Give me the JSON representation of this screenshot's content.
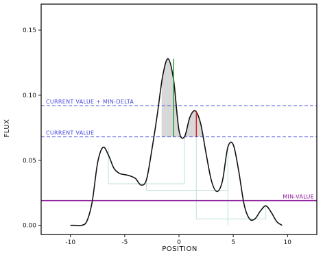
{
  "chart_data": {
    "type": "line",
    "xlabel": "POSITION",
    "ylabel": "FLUX",
    "xlim": [
      -12.7,
      12.7
    ],
    "ylim": [
      -0.007,
      0.17
    ],
    "xticks": [
      -10,
      -5,
      0,
      5,
      10
    ],
    "yticks": [
      0.0,
      0.05,
      0.1,
      0.15
    ],
    "xtick_labels": [
      "-10",
      "-5",
      "0",
      "5",
      "10"
    ],
    "ytick_labels": [
      "0.00",
      "0.05",
      "0.10",
      "0.15"
    ],
    "grid": false,
    "series": [
      {
        "color": "#111111",
        "x": [
          -10,
          -9.5,
          -9,
          -8.5,
          -8,
          -7.5,
          -7,
          -6.5,
          -6,
          -5.5,
          -5,
          -4.5,
          -4,
          -3.5,
          -3,
          -2.5,
          -2,
          -1.5,
          -1,
          -0.5,
          0,
          0.5,
          1,
          1.5,
          2,
          2.5,
          3,
          3.5,
          4,
          4.5,
          5,
          5.5,
          6,
          6.5,
          7,
          7.5,
          8,
          8.5,
          9,
          9.5
        ],
        "y": [
          0.0,
          0.0,
          0.0,
          0.003,
          0.018,
          0.048,
          0.06,
          0.054,
          0.044,
          0.04,
          0.039,
          0.038,
          0.036,
          0.031,
          0.035,
          0.058,
          0.085,
          0.115,
          0.128,
          0.112,
          0.073,
          0.068,
          0.083,
          0.088,
          0.078,
          0.055,
          0.034,
          0.026,
          0.034,
          0.06,
          0.062,
          0.042,
          0.016,
          0.005,
          0.005,
          0.011,
          0.015,
          0.01,
          0.003,
          0.0
        ]
      }
    ],
    "reference_lines": [
      {
        "label": "CURRENT VALUE + MIN-DELTA",
        "y": 0.092,
        "color": "#4a4adf",
        "style": "dashed"
      },
      {
        "label": "CURRENT VALUE",
        "y": 0.068,
        "color": "#4a4adf",
        "style": "dashed"
      },
      {
        "label": "MIN-VALUE",
        "y": 0.019,
        "color": "#8a1a9a",
        "style": "solid"
      }
    ],
    "markers": [
      {
        "x": -0.5,
        "y_low": 0.068,
        "y_high": 0.128,
        "color": "#2ca02c"
      },
      {
        "x": 1.6,
        "y_low": 0.068,
        "y_high": 0.088,
        "color": "#d62728"
      }
    ],
    "shaded_regions": [
      {
        "x_from": -1.6,
        "x_to": 2.5,
        "above": 0.068,
        "color": "#c8c8c8"
      }
    ],
    "guide_lines": [
      {
        "x": [
          -6.5,
          -6.5,
          0.5,
          0.5
        ],
        "y": [
          0.06,
          0.032,
          0.032,
          0.068
        ]
      },
      {
        "x": [
          -3,
          -3,
          4.5,
          4.5
        ],
        "y": [
          0.035,
          0.027,
          0.027,
          0.062
        ]
      },
      {
        "x": [
          1.6,
          1.6,
          8,
          8
        ],
        "y": [
          0.068,
          0.005,
          0.005,
          0.015
        ]
      },
      {
        "x": [
          4.5,
          4.5
        ],
        "y": [
          0.027,
          0.0
        ]
      }
    ]
  }
}
